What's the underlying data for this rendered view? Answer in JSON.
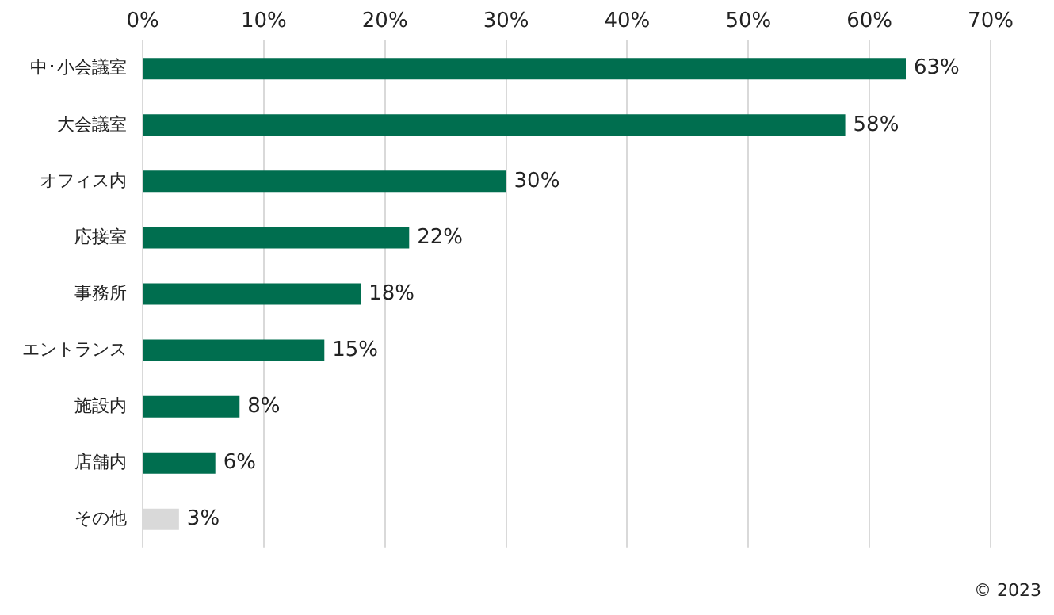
{
  "chart_data": {
    "type": "bar",
    "orientation": "horizontal",
    "categories": [
      "中･小会議室",
      "大会議室",
      "オフィス内",
      "応接室",
      "事務所",
      "エントランス",
      "施設内",
      "店舗内",
      "その他"
    ],
    "values": [
      63,
      58,
      30,
      22,
      18,
      15,
      8,
      6,
      3
    ],
    "colors": [
      "#006e4f",
      "#006e4f",
      "#006e4f",
      "#006e4f",
      "#006e4f",
      "#006e4f",
      "#006e4f",
      "#006e4f",
      "#d9d9d9"
    ],
    "value_labels": [
      "63%",
      "58%",
      "30%",
      "22%",
      "18%",
      "15%",
      "8%",
      "6%",
      "3%"
    ],
    "xlim": [
      0,
      70
    ],
    "xticks": [
      {
        "value": 0,
        "label": "0%"
      },
      {
        "value": 10,
        "label": "10%"
      },
      {
        "value": 20,
        "label": "20%"
      },
      {
        "value": 30,
        "label": "30%"
      },
      {
        "value": 40,
        "label": "40%"
      },
      {
        "value": 50,
        "label": "50%"
      },
      {
        "value": 60,
        "label": "60%"
      },
      {
        "value": 70,
        "label": "70%"
      }
    ],
    "grid": "x",
    "legend": false,
    "annotations": [
      "© 2023"
    ]
  }
}
